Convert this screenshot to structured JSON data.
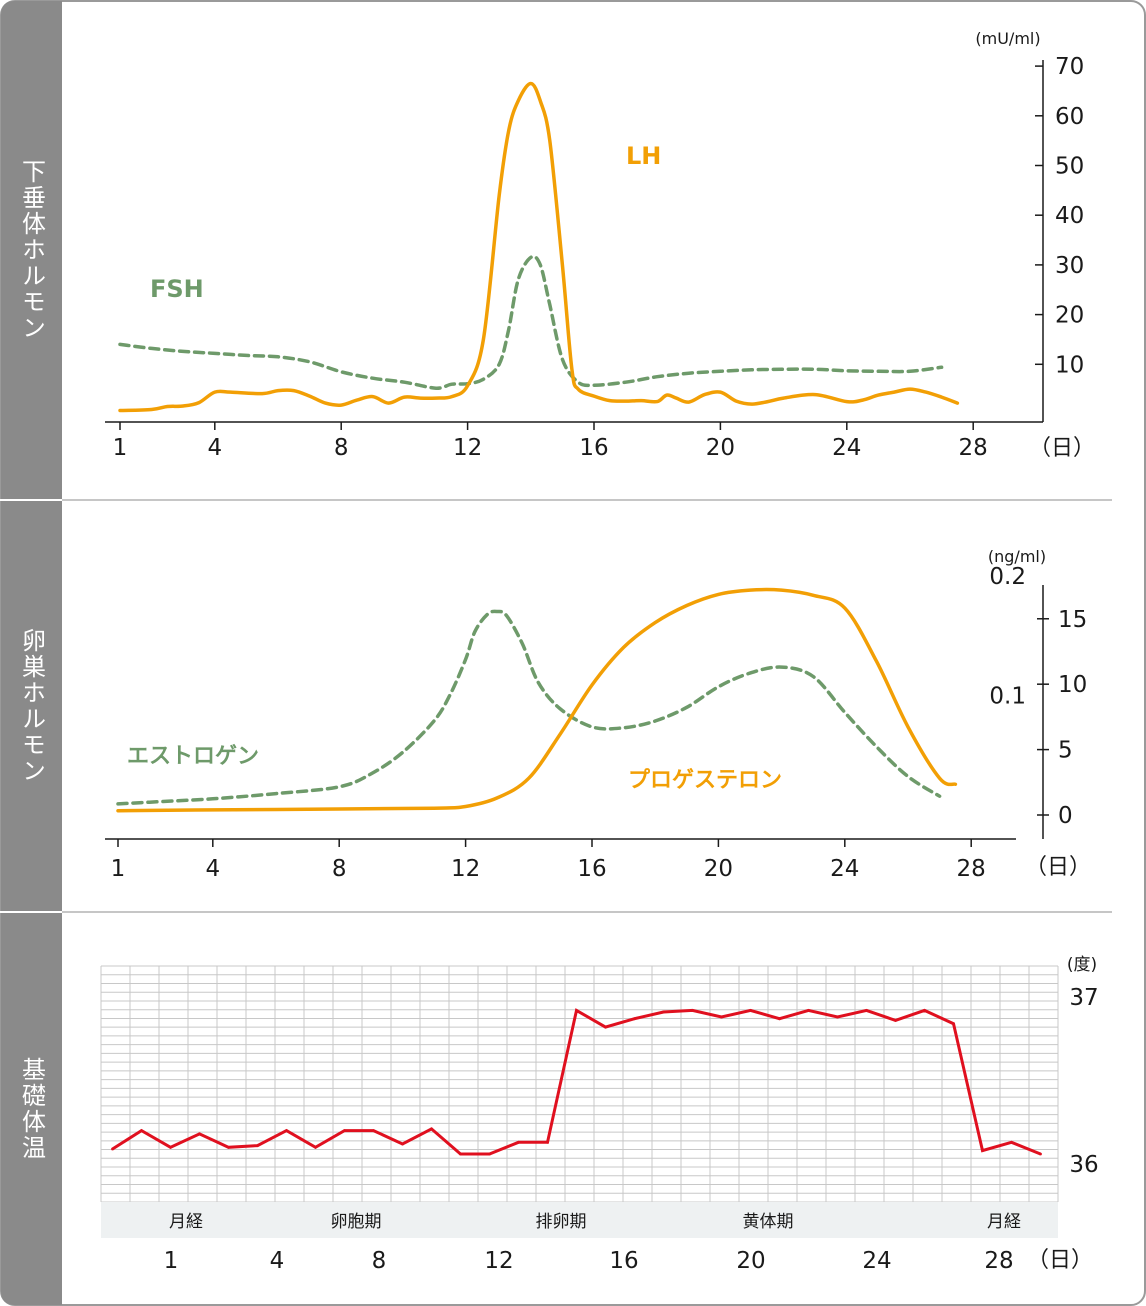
{
  "panels": {
    "pituitary": "下垂体ホルモン",
    "ovarian": "卵巣ホルモン",
    "bbt": "基礎体温"
  },
  "colors": {
    "sidebar": "#8a8a8a",
    "orange": "#f29f05",
    "green": "#6e9a6a",
    "red": "#e0101f",
    "grid": "#c8c8c8",
    "phase_band": "#eef1f2"
  },
  "chart_data": [
    {
      "type": "line",
      "title": "",
      "ylabel_unit": "(mU/ml)",
      "xlabel_unit": "（日）",
      "x_ticks": [
        "1",
        "4",
        "8",
        "12",
        "16",
        "20",
        "24",
        "28"
      ],
      "y_ticks": [
        "70",
        "60",
        "50",
        "40",
        "30",
        "20",
        "10"
      ],
      "ylim": [
        0,
        70
      ],
      "xlim": [
        1,
        28
      ],
      "series": [
        {
          "name": "LH",
          "style": "solid",
          "color": "#f29f05",
          "x": [
            1,
            2,
            2.5,
            3,
            3.5,
            4,
            4.5,
            5.5,
            6,
            6.5,
            7,
            7.5,
            8,
            8.5,
            9,
            9.5,
            10,
            10.5,
            11,
            11.5,
            12,
            12.5,
            13,
            13.3,
            13.6,
            14,
            14.3,
            14.6,
            15,
            15.3,
            15.5,
            16,
            16.5,
            17,
            17.5,
            18,
            18.3,
            18.6,
            19,
            19.5,
            20,
            20.5,
            21,
            21.5,
            22,
            23,
            24,
            24.5,
            25,
            25.5,
            26,
            26.5,
            27,
            27.5
          ],
          "y": [
            0.7,
            0.9,
            1.5,
            1.6,
            2.3,
            4.4,
            4.4,
            4.1,
            4.7,
            4.7,
            3.6,
            2.2,
            1.8,
            2.8,
            3.5,
            2.2,
            3.4,
            3.2,
            3.2,
            3.5,
            5.7,
            15,
            44,
            57,
            63,
            66.5,
            63,
            55,
            30,
            9,
            5,
            3.6,
            2.7,
            2.6,
            2.7,
            2.5,
            3.8,
            3.2,
            2.4,
            3.9,
            4.4,
            2.6,
            2.0,
            2.5,
            3.2,
            3.9,
            2.5,
            2.8,
            3.8,
            4.4,
            5.0,
            4.4,
            3.4,
            2.2
          ]
        },
        {
          "name": "FSH",
          "style": "dashed",
          "color": "#6e9a6a",
          "x": [
            1,
            2,
            3,
            4,
            5,
            6,
            7,
            8,
            9,
            10,
            11,
            11.5,
            12,
            12.5,
            13,
            13.3,
            13.6,
            14,
            14.3,
            14.6,
            15,
            15.5,
            16,
            17,
            18,
            19,
            20,
            21,
            22,
            23,
            24,
            25,
            26,
            27
          ],
          "y": [
            14,
            13.2,
            12.6,
            12.2,
            11.8,
            11.5,
            10.5,
            8.5,
            7.2,
            6.4,
            5.2,
            6.0,
            6.1,
            7,
            10,
            17,
            27,
            31.5,
            30,
            22,
            11,
            6.4,
            5.8,
            6.4,
            7.5,
            8.2,
            8.6,
            8.9,
            9.0,
            9.0,
            8.7,
            8.6,
            8.6,
            9.4
          ]
        }
      ]
    },
    {
      "type": "line",
      "title": "",
      "ylabel_unit": "(ng/ml)",
      "xlabel_unit": "（日）",
      "x_ticks": [
        "1",
        "4",
        "8",
        "12",
        "16",
        "20",
        "24",
        "28"
      ],
      "y_ticks_right": [
        "15",
        "10",
        "5",
        "0"
      ],
      "y_ticks_left": [
        "0.2",
        "0.1"
      ],
      "xlim": [
        1,
        28
      ],
      "series": [
        {
          "name": "エストロゲン",
          "style": "dashed",
          "color": "#6e9a6a",
          "axis": "pg_scale",
          "x": [
            1,
            2,
            4,
            6,
            8,
            9,
            10,
            11,
            11.5,
            12,
            12.3,
            12.7,
            13,
            13.3,
            13.8,
            14.3,
            15,
            16,
            17,
            18,
            19,
            20,
            21,
            22,
            23,
            24,
            25,
            26,
            27
          ],
          "y": [
            1.3,
            1.5,
            1.9,
            2.5,
            3.3,
            4.8,
            7.3,
            11.0,
            14.0,
            18.2,
            21.5,
            23.5,
            23.8,
            23.3,
            20,
            15.5,
            12.4,
            10.3,
            10.2,
            11.0,
            12.6,
            15.0,
            16.6,
            17.3,
            16.2,
            12.0,
            8.0,
            4.5,
            2.2
          ]
        },
        {
          "name": "プロゲステロン",
          "style": "solid",
          "color": "#f29f05",
          "axis": "ng_ml",
          "x": [
            1,
            4,
            8,
            11,
            12,
            13,
            14,
            15,
            16,
            17,
            18,
            19,
            20,
            21,
            22,
            23,
            24,
            25,
            26,
            27,
            27.5
          ],
          "y": [
            0.5,
            0.6,
            0.7,
            0.8,
            1.0,
            2.0,
            4.3,
            9.5,
            15.2,
            19.6,
            22.5,
            24.5,
            25.8,
            26.3,
            26.3,
            25.7,
            24.2,
            18.0,
            10.3,
            4.3,
            3.6
          ]
        }
      ]
    },
    {
      "type": "line",
      "title": "",
      "ylabel_unit": "(度)",
      "xlabel_unit": "（日）",
      "x_ticks": [
        "1",
        "4",
        "8",
        "12",
        "16",
        "20",
        "24",
        "28"
      ],
      "y_ticks": [
        "37",
        "36"
      ],
      "phase_labels": [
        "月経",
        "卵胞期",
        "排卵期",
        "黄体期",
        "月経"
      ],
      "series": [
        {
          "name": "",
          "style": "solid",
          "color": "#e0101f",
          "x": [
            0.5,
            1.5,
            2.5,
            3.5,
            4.5,
            5.5,
            6.5,
            7.5,
            8.5,
            9.5,
            10.5,
            11.5,
            12.5,
            13.5,
            14.5,
            15.5,
            16.5,
            17.5,
            18.5,
            19.5,
            20.5,
            21.5,
            22.5,
            23.5,
            24.5,
            25.5,
            26.5,
            27.5,
            28.5,
            29.5,
            30.5,
            31.5,
            32.5
          ],
          "y": [
            36.09,
            36.2,
            36.1,
            36.18,
            36.1,
            36.11,
            36.2,
            36.1,
            36.2,
            36.2,
            36.12,
            36.21,
            36.06,
            36.06,
            36.13,
            36.13,
            36.92,
            36.82,
            36.87,
            36.91,
            36.92,
            36.88,
            36.92,
            36.87,
            36.92,
            36.88,
            36.92,
            36.86,
            36.92,
            36.84,
            36.08,
            36.13,
            36.06
          ]
        }
      ]
    }
  ]
}
